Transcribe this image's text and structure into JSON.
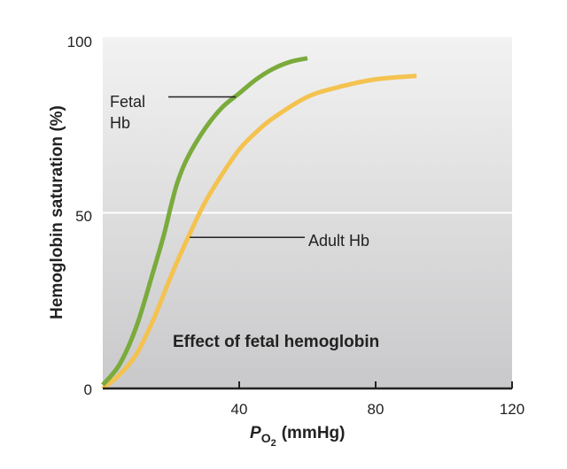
{
  "chart_data": {
    "type": "line",
    "title": "Effect of fetal hemoglobin",
    "xlabel": {
      "main": "P",
      "sub": "O",
      "subsub": "2",
      "unit": "(mmHg)"
    },
    "ylabel": "Hemoglobin saturation (%)",
    "xlim": [
      0,
      120
    ],
    "ylim": [
      0,
      100
    ],
    "xticks": [
      40,
      80,
      120
    ],
    "yticks": [
      0,
      50,
      100
    ],
    "grid": {
      "y": [
        50
      ]
    },
    "series": [
      {
        "name": "Fetal\nHb",
        "label_lines": [
          "Fetal",
          "Hb"
        ],
        "color": "#7aab3c",
        "x": [
          0,
          5,
          10,
          15,
          18,
          20,
          22,
          25,
          30,
          35,
          40,
          45,
          50,
          55,
          60
        ],
        "y": [
          1,
          7,
          18,
          34,
          44,
          52,
          59,
          66,
          74,
          80,
          84,
          88,
          91,
          93,
          94
        ]
      },
      {
        "name": "Adult Hb",
        "label_lines": [
          "Adult Hb"
        ],
        "color": "#f4c24f",
        "x": [
          0,
          5,
          10,
          15,
          20,
          25,
          30,
          35,
          40,
          45,
          50,
          60,
          70,
          80,
          92
        ],
        "y": [
          0,
          4,
          10,
          20,
          32,
          43,
          53,
          61,
          68,
          73,
          77,
          83,
          86,
          88,
          89
        ]
      }
    ]
  }
}
